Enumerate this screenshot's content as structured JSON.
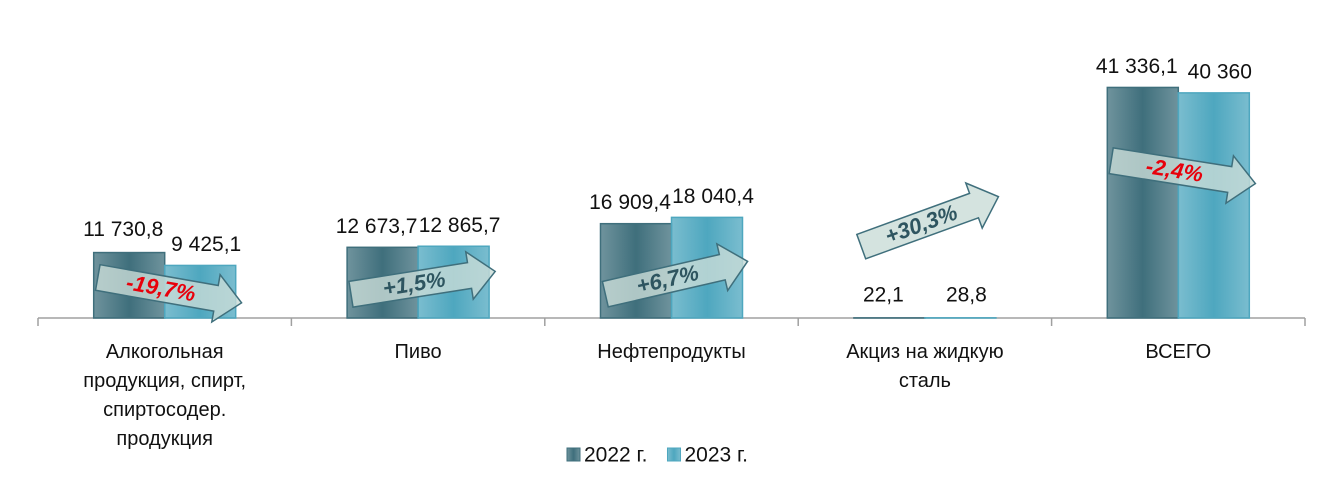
{
  "chart_data": {
    "type": "bar",
    "categories": [
      "Алкогольная продукция, спирт, спиртосодер. продукция",
      "Пиво",
      "Нефтепродукты",
      "Акциз на жидкую сталь",
      "ВСЕГО"
    ],
    "series": [
      {
        "name": "2022 г.",
        "color": "#3f6f7c",
        "values": [
          11730.8,
          12673.7,
          16909.4,
          22.1,
          41336.1
        ],
        "value_labels": [
          "11 730,8",
          "12 673,7",
          "16 909,4",
          "22,1",
          "41 336,1"
        ]
      },
      {
        "name": "2023 г.",
        "color": "#4ea7bf",
        "values": [
          9425.1,
          12865.7,
          18040.4,
          28.8,
          40360
        ],
        "value_labels": [
          "9 425,1",
          "12 865,7",
          "18 040,4",
          "28,8",
          "40 360"
        ]
      }
    ],
    "annotations": [
      "-19,7%",
      "+1,5%",
      "+6,7%",
      "+30,3%",
      "-2,4%"
    ],
    "annotation_colors": [
      "#e8000b",
      "#2e5560",
      "#2e5560",
      "#2e5560",
      "#e8000b"
    ],
    "ylim": [
      0,
      45000
    ],
    "legend": "bottom"
  }
}
